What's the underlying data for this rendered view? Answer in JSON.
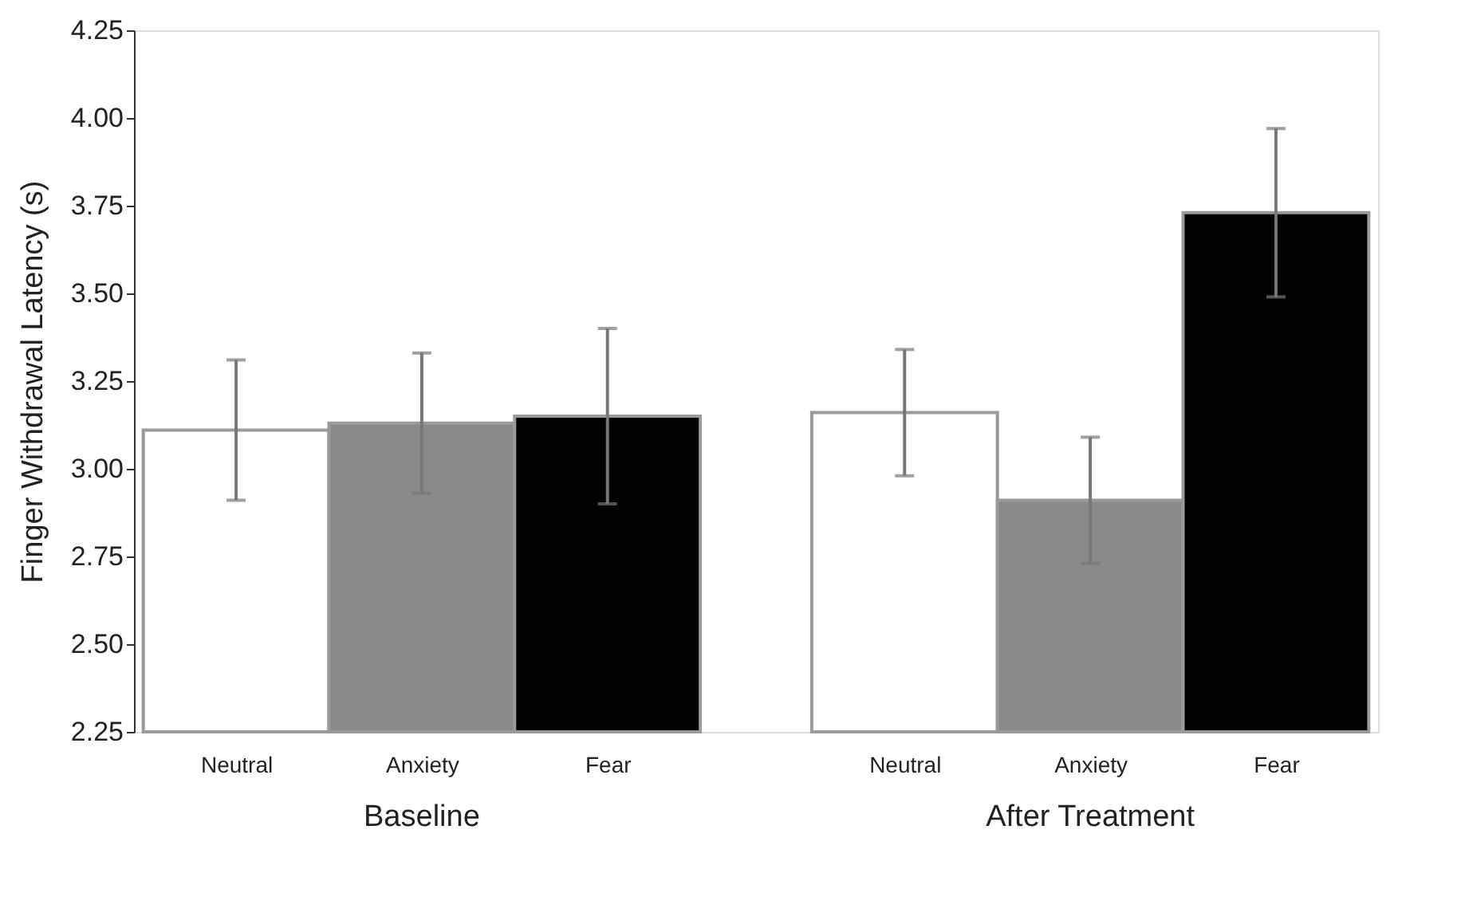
{
  "chart_data": {
    "type": "bar",
    "ylabel": "Finger Withdrawal Latency (s)",
    "categories": [
      "Neutral",
      "Anxiety",
      "Fear",
      "Neutral",
      "Anxiety",
      "Fear"
    ],
    "values": [
      3.11,
      3.13,
      3.15,
      3.16,
      2.91,
      3.73
    ],
    "errors": [
      0.2,
      0.2,
      0.25,
      0.18,
      0.18,
      0.24
    ],
    "colors": [
      "#ffffff",
      "#8a8a8a",
      "#000000",
      "#ffffff",
      "#8a8a8a",
      "#000000"
    ],
    "annotations": [
      "Baseline",
      "After Treatment"
    ],
    "ylim": [
      2.25,
      4.25
    ],
    "yticks": [
      {
        "value": 2.25,
        "label": "2.25"
      },
      {
        "value": 2.5,
        "label": "2.50"
      },
      {
        "value": 2.75,
        "label": "2.75"
      },
      {
        "value": 3,
        "label": "3.00"
      },
      {
        "value": 3.25,
        "label": "3.25"
      },
      {
        "value": 3.5,
        "label": "3.50"
      },
      {
        "value": 3.75,
        "label": "3.75"
      },
      {
        "value": 4,
        "label": "4.00"
      },
      {
        "value": 4.25,
        "label": "4.25"
      }
    ],
    "grid": false
  }
}
